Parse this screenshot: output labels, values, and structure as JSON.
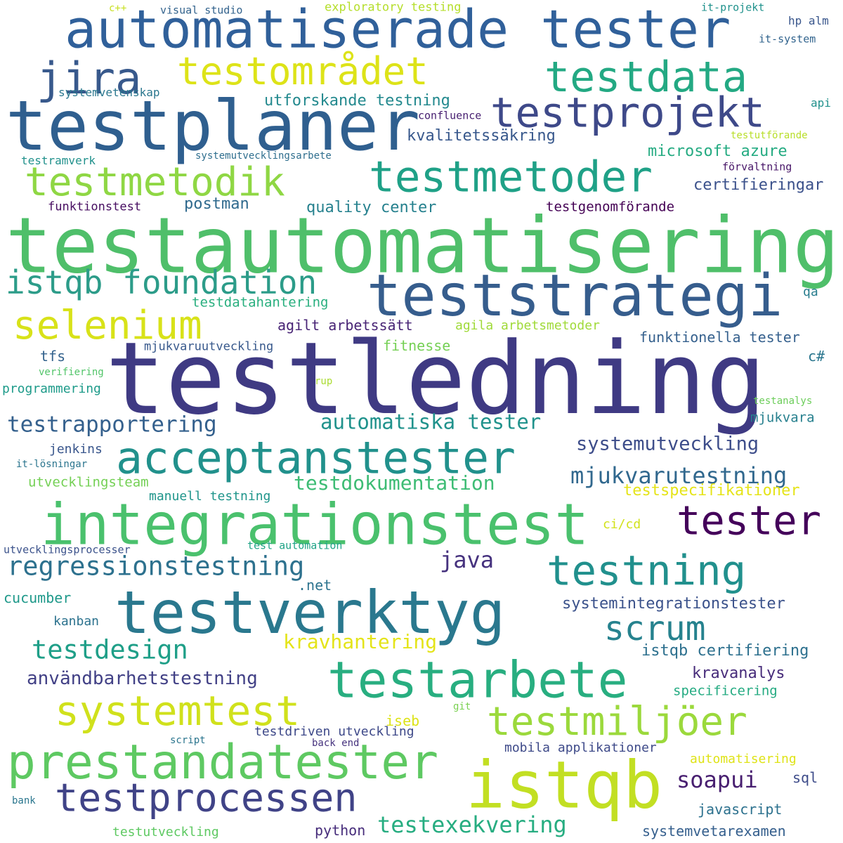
{
  "words": [
    {
      "text": "testledning",
      "color": "#3f3a83"
    },
    {
      "text": "testautomatisering",
      "color": "#4fbf6a"
    },
    {
      "text": "automatiserade tester",
      "color": "#30609a"
    },
    {
      "text": "testplaner",
      "color": "#2f5f8f"
    },
    {
      "text": "integrationstest",
      "color": "#4ac16d"
    },
    {
      "text": "teststrategi",
      "color": "#365d8d"
    },
    {
      "text": "testverktyg",
      "color": "#2a788e"
    },
    {
      "text": "istqb",
      "color": "#c2df23"
    },
    {
      "text": "acceptanstester",
      "color": "#21918c"
    },
    {
      "text": "testarbete",
      "color": "#28ae80"
    },
    {
      "text": "prestandatester",
      "color": "#5ec962"
    },
    {
      "text": "testprojekt",
      "color": "#3e4989"
    },
    {
      "text": "testmetoder",
      "color": "#1fa187"
    },
    {
      "text": "testdata",
      "color": "#23a983"
    },
    {
      "text": "testområdet",
      "color": "#dde318"
    },
    {
      "text": "jira",
      "color": "#38598c"
    },
    {
      "text": "testmetodik",
      "color": "#8fd744"
    },
    {
      "text": "istqb foundation",
      "color": "#2c9c89"
    },
    {
      "text": "selenium",
      "color": "#d8e219"
    },
    {
      "text": "tester",
      "color": "#44015a"
    },
    {
      "text": "testning",
      "color": "#21908d"
    },
    {
      "text": "testprocessen",
      "color": "#404387"
    },
    {
      "text": "systemtest",
      "color": "#d0e11c"
    },
    {
      "text": "testmiljöer",
      "color": "#9bd93c"
    },
    {
      "text": "scrum",
      "color": "#26828e"
    },
    {
      "text": "regressionstestning",
      "color": "#2d718e"
    },
    {
      "text": "testdesign",
      "color": "#1f9f88"
    },
    {
      "text": "testrapportering",
      "color": "#34608d"
    },
    {
      "text": "mjukvarutestning",
      "color": "#31688e"
    },
    {
      "text": "användbarhetstestning",
      "color": "#424186"
    },
    {
      "text": "automatiska tester",
      "color": "#20928c"
    },
    {
      "text": "systemutveckling",
      "color": "#3d4d8a"
    },
    {
      "text": "testdokumentation",
      "color": "#3dbc74"
    },
    {
      "text": "testexekvering",
      "color": "#27ad81"
    },
    {
      "text": "kravhantering",
      "color": "#e4e419"
    },
    {
      "text": "java",
      "color": "#46327e"
    },
    {
      "text": "soapui",
      "color": "#481f70"
    },
    {
      "text": "testspecifikationer",
      "color": "#e5e419"
    },
    {
      "text": "systemintegrationstester",
      "color": "#3b528b"
    },
    {
      "text": "istqb certifiering",
      "color": "#2d708e"
    },
    {
      "text": "kravanalys",
      "color": "#472c7a"
    },
    {
      "text": "utforskande testning",
      "color": "#23898e"
    },
    {
      "text": "kvalitetssäkring",
      "color": "#38588c"
    },
    {
      "text": "microsoft azure",
      "color": "#25ab82"
    },
    {
      "text": "certifieringar",
      "color": "#3b518b"
    },
    {
      "text": "postman",
      "color": "#306a8e"
    },
    {
      "text": "quality center",
      "color": "#26818e"
    },
    {
      "text": "testgenomförande",
      "color": "#440154"
    },
    {
      "text": "funktionstest",
      "color": "#470e61"
    },
    {
      "text": "testdatahantering",
      "color": "#29af7f"
    },
    {
      "text": "agilt arbetssätt",
      "color": "#482475"
    },
    {
      "text": "agila arbetsmetoder",
      "color": "#a0da39"
    },
    {
      "text": "funktionella tester",
      "color": "#35608d"
    },
    {
      "text": "fitnesse",
      "color": "#75d054"
    },
    {
      "text": "mjukvaruutveckling",
      "color": "#38598c"
    },
    {
      "text": "tfs",
      "color": "#33628d"
    },
    {
      "text": "c#",
      "color": "#2a768e"
    },
    {
      "text": "programmering",
      "color": "#1e9b8a"
    },
    {
      "text": "verifiering",
      "color": "#52c569"
    },
    {
      "text": "rup",
      "color": "#aadc32"
    },
    {
      "text": "testanalys",
      "color": "#6ccd5a"
    },
    {
      "text": "mjukvara",
      "color": "#27808e"
    },
    {
      "text": "jenkins",
      "color": "#39568c"
    },
    {
      "text": "it-lösningar",
      "color": "#2b758e"
    },
    {
      "text": "utvecklingsteam",
      "color": "#74d055"
    },
    {
      "text": "manuell testning",
      "color": "#1f958b"
    },
    {
      "text": "ci/cd",
      "color": "#d2e21b"
    },
    {
      "text": "utvecklingsprocesser",
      "color": "#3b528b"
    },
    {
      "text": "test automation",
      "color": "#20a386"
    },
    {
      "text": ".net",
      "color": "#2c738e"
    },
    {
      "text": "cucumber",
      "color": "#1f998a"
    },
    {
      "text": "kanban",
      "color": "#2c728e"
    },
    {
      "text": "specificering",
      "color": "#25ab82"
    },
    {
      "text": "iseb",
      "color": "#dde318"
    },
    {
      "text": "git",
      "color": "#7ad151"
    },
    {
      "text": "testdriven utveckling",
      "color": "#3e4989"
    },
    {
      "text": "script",
      "color": "#2b758e"
    },
    {
      "text": "back end",
      "color": "#46337e"
    },
    {
      "text": "mobila applikationer",
      "color": "#3e4a89"
    },
    {
      "text": "automatisering",
      "color": "#dfe318"
    },
    {
      "text": "sql",
      "color": "#3e4c8a"
    },
    {
      "text": "bank",
      "color": "#2a768e"
    },
    {
      "text": "javascript",
      "color": "#2c718e"
    },
    {
      "text": "python",
      "color": "#472d7b"
    },
    {
      "text": "systemvetarexamen",
      "color": "#355f8d"
    },
    {
      "text": "testutveckling",
      "color": "#5ec962"
    },
    {
      "text": "c++",
      "color": "#c8e020"
    },
    {
      "text": "visual studio",
      "color": "#33638d"
    },
    {
      "text": "exploratory testing",
      "color": "#b5de2b"
    },
    {
      "text": "it-projekt",
      "color": "#20928c"
    },
    {
      "text": "hp alm",
      "color": "#39568c"
    },
    {
      "text": "it-system",
      "color": "#32648e"
    },
    {
      "text": "systemvetenskap",
      "color": "#2a778e"
    },
    {
      "text": "confluence",
      "color": "#482071"
    },
    {
      "text": "api",
      "color": "#21918c"
    },
    {
      "text": "testutförande",
      "color": "#b8de29"
    },
    {
      "text": "testramverk",
      "color": "#21918c"
    },
    {
      "text": "systemutvecklingsarbete",
      "color": "#2e6e8e"
    },
    {
      "text": "förvaltning",
      "color": "#481668"
    },
    {
      "text": "qa",
      "color": "#287d8e"
    }
  ]
}
